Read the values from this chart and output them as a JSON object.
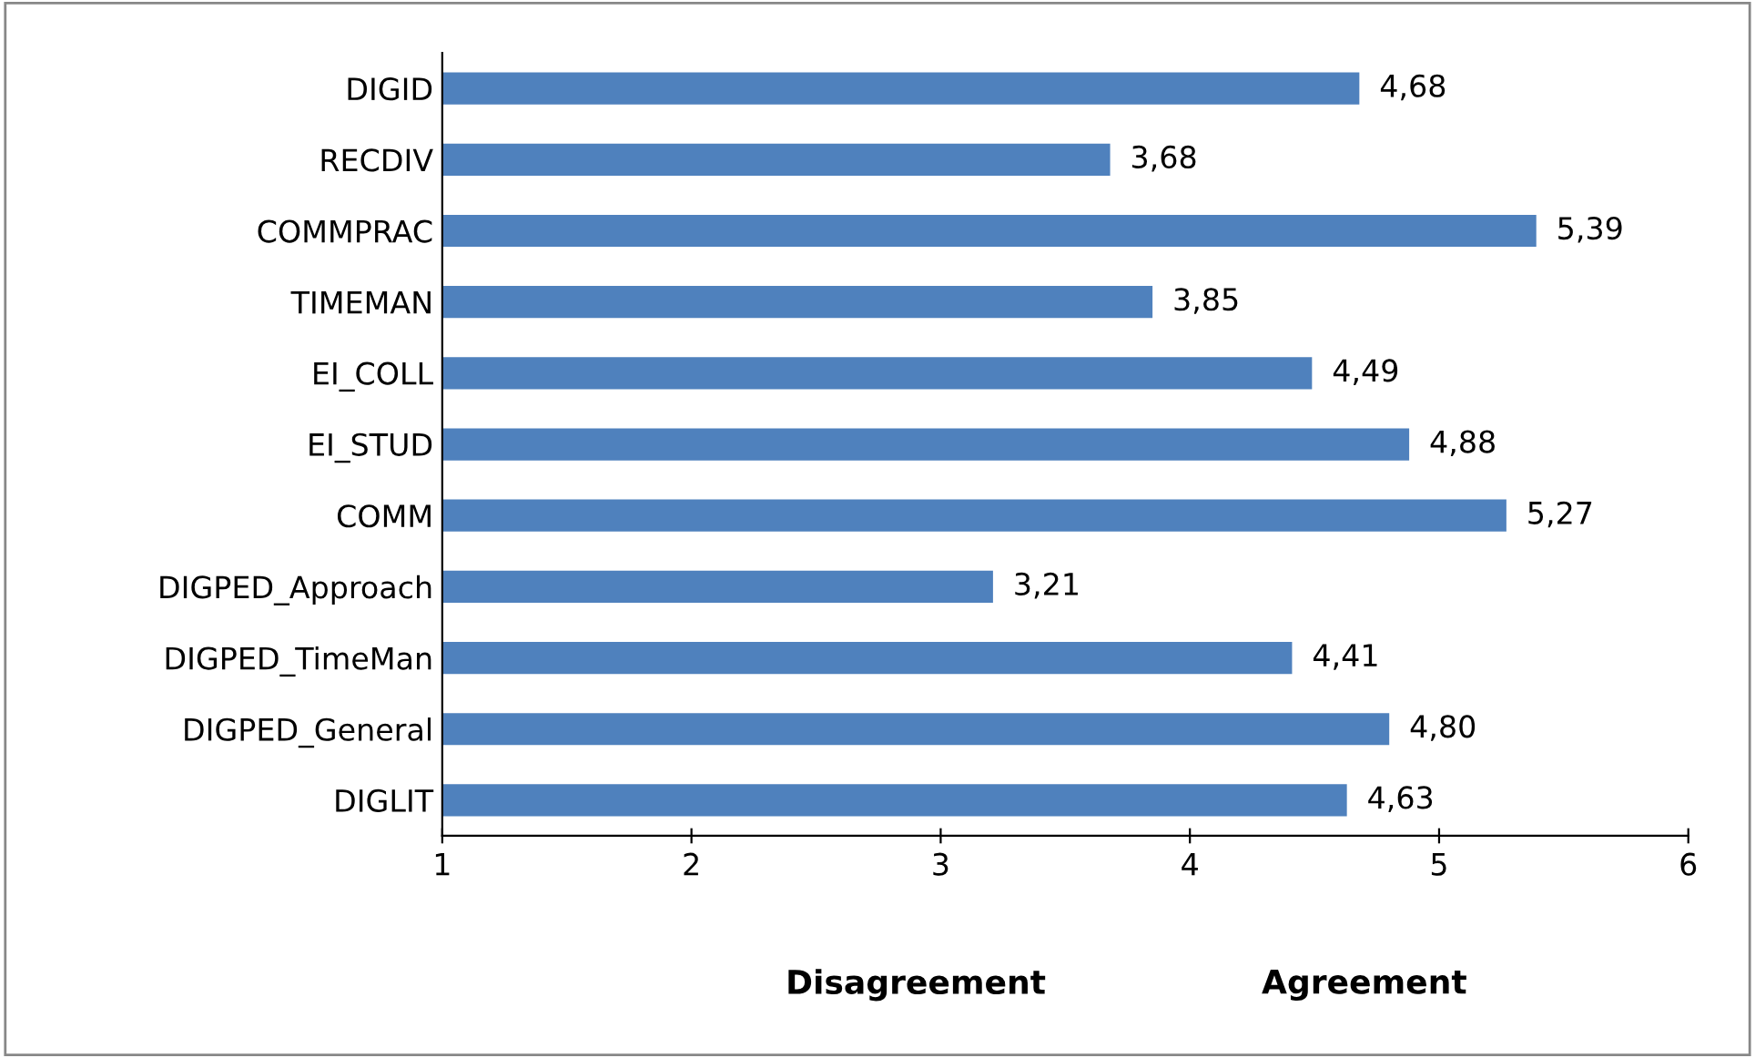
{
  "chart_data": {
    "type": "bar",
    "orientation": "horizontal",
    "categories": [
      "DIGID",
      "RECDIV",
      "COMMPRAC",
      "TIMEMAN",
      "EI_COLL",
      "EI_STUD",
      "COMM",
      "DIGPED_Approach",
      "DIGPED_TimeMan",
      "DIGPED_General",
      "DIGLIT"
    ],
    "values": [
      4.68,
      3.68,
      5.39,
      3.85,
      4.49,
      4.88,
      5.27,
      3.21,
      4.41,
      4.8,
      4.63
    ],
    "value_labels": [
      "4,68",
      "3,68",
      "5,39",
      "3,85",
      "4,49",
      "4,88",
      "5,27",
      "3,21",
      "4,41",
      "4,80",
      "4,63"
    ],
    "color": "#4f81bd",
    "xlim": [
      1,
      6
    ],
    "xticks": [
      1,
      2,
      3,
      4,
      5,
      6
    ],
    "annotations": [
      "Disagreement",
      "Agreement"
    ],
    "grid": false,
    "legend": false
  }
}
